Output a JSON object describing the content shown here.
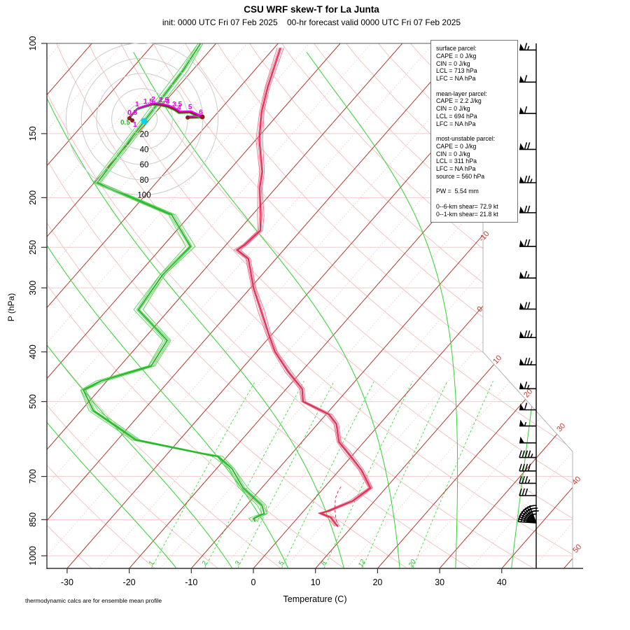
{
  "header": {
    "title": "CSU WRF skew-T for La Junta",
    "subtitle": "init: 0000 UTC Fri 07 Feb 2025    00-hr forecast valid 0000 UTC Fri 07 Feb 2025"
  },
  "footer": {
    "note": "thermodynamic calcs are for ensemble mean profile"
  },
  "axes": {
    "x_label": "Temperature (C)",
    "y_label": "P (hPa)",
    "x_ticks": [
      -30,
      -20,
      -10,
      0,
      10,
      20,
      30,
      40
    ],
    "y_ticks": [
      100,
      150,
      200,
      250,
      300,
      400,
      500,
      700,
      850,
      1000
    ]
  },
  "colors": {
    "isotherm": "#b03a2e",
    "isotherm_dotted": "#f0c0c0",
    "isobar": "#f5caca",
    "dry_adiabat": "#f2bdbd",
    "moist_adiabat": "#2fd42f",
    "mixing_ratio": "#3fdc3f",
    "temperature": "#dc2f55",
    "temperature_member": "#ef7490",
    "dewpoint": "#2cb52c",
    "dewpoint_member": "#52d452",
    "barb": "#000000",
    "hodograph_ring": "#cccccc",
    "hodo_trace_dark": "#8b1a1a",
    "hodo_trace_magenta": "#e800e8",
    "hodo_trace_green": "#2eb82e",
    "storm_motion": "#00d5e8",
    "boundary": "#b3b3b3",
    "axis": "#333333",
    "isotherm_label": "#c0392b",
    "mixing_label": "#28c028"
  },
  "info_box": {
    "lines": [
      "surface parcel:",
      "CAPE = 0 J/kg",
      "CIN = 0 J/kg",
      "LCL = 713 hPa",
      "LFC = NA hPa",
      "",
      "mean-layer parcel:",
      "CAPE = 2.2 J/kg",
      "CIN = 0 J/kg",
      "LCL = 694 hPa",
      "LFC = NA hPa",
      "",
      "most-unstable parcel:",
      "CAPE = 0 J/kg",
      "CIN = 0 J/kg",
      "LCL = 311 hPa",
      "LFC = NA hPa",
      "source = 560 hPa",
      "",
      "PW =  5.54 mm",
      "",
      "0--6-km shear= 72.9 kt",
      "0--1-km shear= 21.8 kt"
    ]
  },
  "chart_data": {
    "type": "skewt",
    "title": "CSU WRF skew-T for La Junta",
    "x_axis": {
      "label": "Temperature (C)",
      "ticks": [
        -30,
        -20,
        -10,
        0,
        10,
        20,
        30,
        40
      ],
      "unit": "C"
    },
    "y_axis": {
      "label": "P (hPa)",
      "ticks": [
        100,
        150,
        200,
        250,
        300,
        400,
        500,
        700,
        850,
        1000
      ],
      "scale": "log",
      "range": [
        100,
        1056
      ]
    },
    "isotherm_edge_labels": [
      -10,
      0,
      10,
      20,
      30,
      40,
      50
    ],
    "mixing_ratio_g_kg": [
      1,
      2,
      3,
      5,
      8,
      12,
      20
    ],
    "temperature_profile_p_t": [
      [
        102,
        -69
      ],
      [
        122,
        -65.5
      ],
      [
        136,
        -63
      ],
      [
        154,
        -59.5
      ],
      [
        178,
        -54.5
      ],
      [
        192,
        -52.5
      ],
      [
        217,
        -48.5
      ],
      [
        232,
        -46.5
      ],
      [
        247,
        -47
      ],
      [
        253,
        -47.5
      ],
      [
        263,
        -44.5
      ],
      [
        300,
        -39.5
      ],
      [
        333,
        -35
      ],
      [
        370,
        -30.5
      ],
      [
        400,
        -27
      ],
      [
        438,
        -22
      ],
      [
        472,
        -17.5
      ],
      [
        500,
        -15.5
      ],
      [
        530,
        -9.5
      ],
      [
        553,
        -7
      ],
      [
        600,
        -4
      ],
      [
        625,
        -1.5
      ],
      [
        680,
        3.5
      ],
      [
        737,
        7.5
      ],
      [
        781,
        6.5
      ],
      [
        818,
        4
      ],
      [
        826,
        3
      ],
      [
        842,
        5.3
      ],
      [
        876,
        7.6
      ]
    ],
    "dewpoint_profile_p_t": [
      [
        100,
        -82.5
      ],
      [
        113,
        -81.5
      ],
      [
        187,
        -79.5
      ],
      [
        216,
        -63
      ],
      [
        249,
        -55.5
      ],
      [
        283,
        -56
      ],
      [
        331,
        -55
      ],
      [
        380,
        -46
      ],
      [
        426,
        -45
      ],
      [
        456,
        -51
      ],
      [
        475,
        -52.5
      ],
      [
        521,
        -48
      ],
      [
        594,
        -37
      ],
      [
        630,
        -25
      ],
      [
        640,
        -21.5
      ],
      [
        676,
        -17.5
      ],
      [
        737,
        -13
      ],
      [
        797,
        -7.5
      ],
      [
        827,
        -6
      ],
      [
        845,
        -7
      ],
      [
        858,
        -6.3
      ]
    ],
    "parcel_path_p_t": [
      [
        879,
        7.8
      ],
      [
        842,
        6.1
      ],
      [
        804,
        4.5
      ],
      [
        771,
        3.3
      ],
      [
        745,
        2.7
      ],
      [
        733,
        2.6
      ]
    ],
    "wind_barbs_p_kt": [
      [
        103,
        65
      ],
      [
        119,
        60
      ],
      [
        137,
        60
      ],
      [
        161,
        70
      ],
      [
        187,
        75
      ],
      [
        214,
        70
      ],
      [
        249,
        70
      ],
      [
        287,
        65
      ],
      [
        330,
        70
      ],
      [
        375,
        75
      ],
      [
        424,
        75
      ],
      [
        472,
        65
      ],
      [
        519,
        60
      ],
      [
        558,
        55
      ],
      [
        602,
        50
      ],
      [
        643,
        45
      ],
      [
        683,
        40
      ],
      [
        722,
        35
      ],
      [
        763,
        30
      ]
    ],
    "surface_fan": {
      "count": 9,
      "kt": 35
    },
    "hodograph": {
      "rings_kt": [
        20,
        40,
        60,
        80,
        100
      ],
      "points": [
        {
          "km": "0.5",
          "u": -16.5,
          "v": 2
        },
        {
          "km": "1",
          "u": -6.5,
          "v": 13
        },
        {
          "km": "1.5",
          "u": 4.5,
          "v": 16.5
        },
        {
          "km": "2",
          "u": 15,
          "v": 19.5
        },
        {
          "km": "2.5",
          "u": 25,
          "v": 18.5
        },
        {
          "km": "3",
          "u": 34,
          "v": 16.5
        },
        {
          "km": "3.5",
          "u": 42.5,
          "v": 13
        },
        {
          "km": "4",
          "u": 49,
          "v": 8.5
        },
        {
          "km": "5",
          "u": 63.5,
          "v": 9
        },
        {
          "km": "6",
          "u": 77.5,
          "v": 2.5
        },
        {
          "km": "",
          "u": 60,
          "v": 2
        }
      ],
      "storm_motion": {
        "u": 2.8,
        "v": -2.8
      }
    },
    "parcel_info": {
      "surface": {
        "CAPE_J_kg": 0,
        "CIN_J_kg": 0,
        "LCL_hPa": 713,
        "LFC_hPa": "NA"
      },
      "mean_layer": {
        "CAPE_J_kg": 2.2,
        "CIN_J_kg": 0,
        "LCL_hPa": 694,
        "LFC_hPa": "NA"
      },
      "most_unstable": {
        "CAPE_J_kg": 0,
        "CIN_J_kg": 0,
        "LCL_hPa": 311,
        "LFC_hPa": "NA",
        "source_hPa": 560
      },
      "PW_mm": 5.54,
      "shear_0_6km_kt": 72.9,
      "shear_0_1km_kt": 21.8
    }
  }
}
